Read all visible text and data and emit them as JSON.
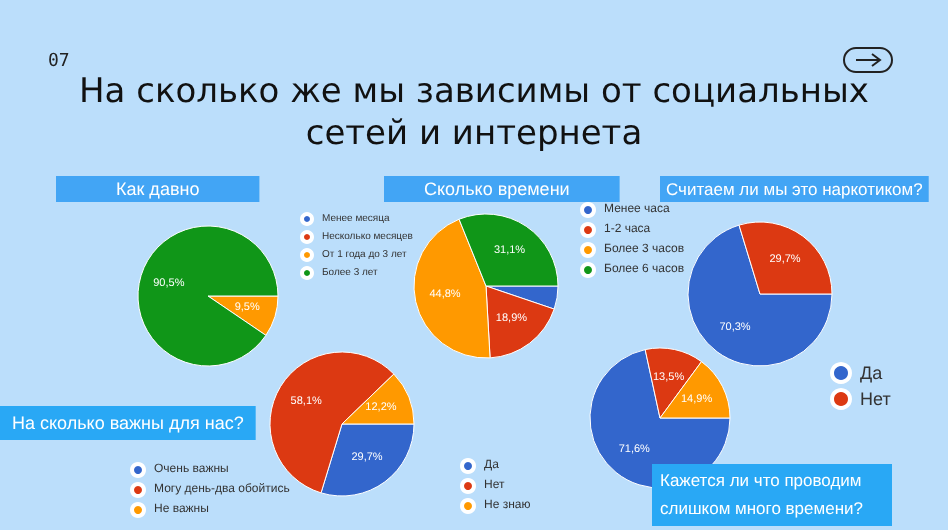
{
  "chart_data": [
    {
      "type": "other",
      "title": "На сколько же мы зависимы от социальных сетей и интернета",
      "annotations": [
        "07"
      ]
    },
    {
      "type": "pie",
      "title": "Как давно",
      "categories": [
        "Менее месяца",
        "Несколько месяцев",
        "От 1 года до 3 лет",
        "Более 3 лет"
      ],
      "values": [
        0,
        0,
        9.5,
        90.5
      ],
      "colors": [
        "#3366cc",
        "#dc3912",
        "#ff9900",
        "#109618"
      ],
      "value_labels": [
        null,
        null,
        "9,5%",
        "90,5%"
      ],
      "legend": "right"
    },
    {
      "type": "pie",
      "title": "Сколько времени",
      "categories": [
        "Менее часа",
        "1-2 часа",
        "Более 3 часов",
        "Более 6 часов"
      ],
      "values": [
        5.2,
        18.9,
        44.8,
        31.1
      ],
      "colors": [
        "#3366cc",
        "#dc3912",
        "#ff9900",
        "#109618"
      ],
      "value_labels": [
        null,
        "18,9%",
        "44,8%",
        "31,1%"
      ],
      "legend": "right"
    },
    {
      "type": "pie",
      "title": "Считаем ли мы это наркотиком?",
      "categories": [
        "Да",
        "Нет"
      ],
      "values": [
        70.3,
        29.7
      ],
      "colors": [
        "#3366cc",
        "#dc3912"
      ],
      "value_labels": [
        "70,3%",
        "29,7%"
      ],
      "legend": "bottom right"
    },
    {
      "type": "pie",
      "title": "На сколько важны для нас?",
      "categories": [
        "Очень важны",
        "Могу день-два обойтись",
        "Не важны"
      ],
      "values": [
        29.7,
        58.1,
        12.2
      ],
      "colors": [
        "#3366cc",
        "#dc3912",
        "#ff9900"
      ],
      "value_labels": [
        "29,7%",
        "58,1%",
        "12,2%"
      ],
      "legend": "bottom left"
    },
    {
      "type": "pie",
      "title": "Кажется ли что проводим слишком много времени?",
      "categories": [
        "Да",
        "Нет",
        "Не знаю"
      ],
      "values": [
        71.6,
        13.5,
        14.9
      ],
      "colors": [
        "#3366cc",
        "#dc3912",
        "#ff9900"
      ],
      "value_labels": [
        "71,6%",
        "13,5%",
        "14,9%"
      ],
      "legend": "left"
    }
  ]
}
